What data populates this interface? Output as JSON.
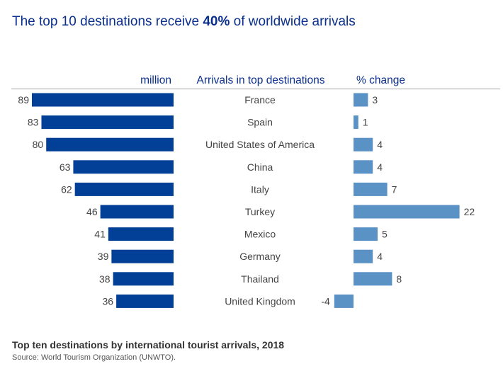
{
  "chart_data": {
    "type": "bar",
    "title_pre": "The top 10 destinations receive ",
    "title_bold": "40%",
    "title_post": " of worldwide arrivals",
    "headers": {
      "left": "million",
      "center": "Arrivals in top destinations",
      "right": "% change"
    },
    "categories": [
      "France",
      "Spain",
      "United States of America",
      "China",
      "Italy",
      "Turkey",
      "Mexico",
      "Germany",
      "Thailand",
      "United Kingdom"
    ],
    "series": [
      {
        "name": "million",
        "values": [
          89,
          83,
          80,
          63,
          62,
          46,
          41,
          39,
          38,
          36
        ],
        "color": "#023f97"
      },
      {
        "name": "% change",
        "values": [
          3,
          1,
          4,
          4,
          7,
          22,
          5,
          4,
          8,
          -4
        ],
        "color": "#5b92c6"
      }
    ],
    "caption": "Top ten destinations by international tourist arrivals, 2018",
    "source": "Source: World Tourism Organization (UNWTO)."
  }
}
